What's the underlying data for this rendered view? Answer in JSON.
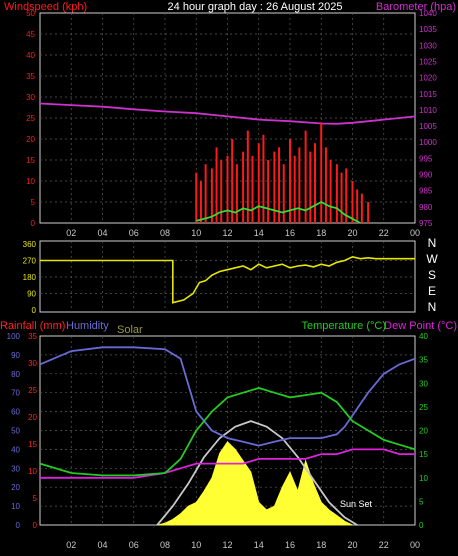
{
  "colors": {
    "background": "#000000",
    "frame": "#d0d0d0",
    "grid": "#5a5a5a",
    "windspeed": "#ff1a1a",
    "barometer": "#cc33cc",
    "gust_avg": "#33dd33",
    "direction": "#e6e600",
    "rainfall": "#ff2222",
    "humidity": "#6a6ad6",
    "solar": "#ffff33",
    "solar_theory": "#c8c8c8",
    "temperature": "#22cc22",
    "dewpoint": "#dd22dd",
    "xaxis": "#c8c8c8"
  },
  "header": {
    "title": "24 hour graph day : 26 August 2025"
  },
  "chart_data": [
    {
      "type": "line",
      "name": "wind-barometer",
      "labels": {
        "left": "Windspeed (kph)",
        "right": "Barometer (hpa)"
      },
      "x_ticks": [
        "02",
        "04",
        "06",
        "08",
        "10",
        "12",
        "14",
        "16",
        "18",
        "20",
        "22",
        "00"
      ],
      "y_left": {
        "range": [
          0,
          50
        ],
        "ticks": [
          "0",
          "5",
          "10",
          "15",
          "20",
          "25",
          "30",
          "35",
          "40",
          "45",
          "50"
        ]
      },
      "y_right": {
        "range": [
          975,
          1040
        ],
        "ticks": [
          "975",
          "980",
          "985",
          "990",
          "995",
          "1000",
          "1005",
          "1010",
          "1015",
          "1020",
          "1025",
          "1030",
          "1035",
          "1040"
        ]
      },
      "series": [
        {
          "key": "barometer",
          "axis": "right",
          "x": [
            0,
            2,
            4,
            6,
            8,
            10,
            12,
            14,
            16,
            18,
            19,
            20,
            22,
            24
          ],
          "y": [
            1012,
            1011.5,
            1011,
            1010.2,
            1009.5,
            1009,
            1008,
            1007,
            1006.5,
            1005.8,
            1005.7,
            1006,
            1007,
            1008
          ]
        },
        {
          "key": "windspeed",
          "axis": "left",
          "style": "spikes",
          "x": [
            10,
            10.3,
            10.6,
            11,
            11.3,
            11.6,
            12,
            12.3,
            12.6,
            13,
            13.3,
            13.6,
            14,
            14.3,
            14.6,
            15,
            15.3,
            15.6,
            16,
            16.3,
            16.6,
            17,
            17.3,
            17.6,
            18,
            18.3,
            18.6,
            19,
            19.3,
            19.6,
            20,
            20.3,
            20.6,
            21
          ],
          "y": [
            12,
            10,
            14,
            13,
            18,
            15,
            16,
            20,
            14,
            17,
            22,
            16,
            19,
            21,
            15,
            17,
            18,
            14,
            20,
            16,
            18,
            22,
            17,
            19,
            24,
            18,
            15,
            14,
            12,
            13,
            10,
            8,
            7,
            5
          ]
        },
        {
          "key": "gust_avg",
          "axis": "left",
          "x": [
            10,
            10.5,
            11,
            11.5,
            12,
            12.5,
            13,
            13.5,
            14,
            14.5,
            15,
            15.5,
            16,
            16.5,
            17,
            17.5,
            18,
            18.5,
            19,
            19.5,
            20,
            20.5
          ],
          "y": [
            0.5,
            1,
            1.5,
            2.5,
            3,
            2.5,
            3.5,
            3,
            4,
            3.5,
            3,
            2.5,
            3,
            3.5,
            3,
            4,
            5,
            4,
            3.5,
            2,
            1,
            0
          ]
        }
      ]
    },
    {
      "type": "line",
      "name": "wind-direction",
      "y_ticks": [
        "0",
        "90",
        "180",
        "270",
        "360"
      ],
      "y_range": [
        0,
        360
      ],
      "compass": [
        "N",
        "W",
        "S",
        "E",
        "N"
      ],
      "series": [
        {
          "key": "direction",
          "x": [
            0,
            8.5,
            8.5,
            9.2,
            9.8,
            10.2,
            10.6,
            11,
            11.5,
            12,
            12.5,
            13,
            13.5,
            14,
            14.5,
            15,
            15.5,
            16,
            16.5,
            17,
            17.5,
            18,
            18.5,
            19,
            19.5,
            20,
            20.5,
            21,
            21.5,
            22,
            23,
            24
          ],
          "y": [
            270,
            270,
            40,
            55,
            90,
            150,
            160,
            190,
            210,
            220,
            230,
            240,
            220,
            250,
            230,
            240,
            250,
            230,
            240,
            245,
            235,
            250,
            240,
            260,
            270,
            290,
            280,
            285,
            280,
            280,
            280,
            280
          ]
        }
      ]
    },
    {
      "type": "line",
      "name": "rain-humidity-solar-temp",
      "labels": {
        "rainfall": "Rainfall (mm)",
        "humidity": "Humidity",
        "solar": "Solar",
        "temperature": "Temperature (°C)",
        "dewpoint": "Dew Point (°C)"
      },
      "annotation": "Sun Set",
      "x_ticks": [
        "02",
        "04",
        "06",
        "08",
        "10",
        "12",
        "14",
        "16",
        "18",
        "20",
        "22",
        "00"
      ],
      "y_humidity": {
        "range": [
          0,
          100
        ],
        "ticks": [
          "0",
          "10",
          "20",
          "30",
          "40",
          "50",
          "60",
          "70",
          "80",
          "90",
          "100"
        ]
      },
      "y_rain": {
        "range": [
          0,
          35
        ],
        "ticks": [
          "0",
          "5",
          "10",
          "15",
          "20",
          "25",
          "30",
          "35"
        ]
      },
      "y_temp": {
        "range": [
          0,
          40
        ],
        "ticks": [
          "0",
          "5",
          "10",
          "15",
          "20",
          "25",
          "30",
          "35",
          "40"
        ]
      },
      "series": [
        {
          "key": "humidity",
          "axis": "humidity",
          "x": [
            0,
            2,
            4,
            6,
            8,
            9,
            10,
            11,
            12,
            13,
            14,
            15,
            16,
            17,
            18,
            19,
            19.5,
            20,
            21,
            22,
            23,
            24
          ],
          "y": [
            85,
            92,
            94,
            94,
            93,
            88,
            60,
            50,
            46,
            44,
            42,
            44,
            46,
            46,
            46,
            48,
            52,
            58,
            70,
            80,
            85,
            88
          ]
        },
        {
          "key": "temperature",
          "axis": "temp",
          "x": [
            0,
            2,
            4,
            6,
            8,
            9,
            10,
            11,
            12,
            13,
            14,
            15,
            16,
            17,
            18,
            19,
            20,
            21,
            22,
            23,
            24
          ],
          "y": [
            13,
            11,
            10.5,
            10.5,
            11,
            14,
            20,
            24,
            27,
            28,
            29,
            28,
            27,
            27.5,
            28,
            26,
            22,
            20,
            18,
            17,
            16
          ]
        },
        {
          "key": "dewpoint",
          "axis": "temp",
          "x": [
            0,
            2,
            4,
            6,
            8,
            9,
            10,
            11,
            12,
            13,
            14,
            15,
            16,
            17,
            18,
            19,
            20,
            21,
            22,
            23,
            24
          ],
          "y": [
            10,
            10,
            10,
            10,
            11,
            12,
            13,
            13,
            13,
            13,
            14,
            14,
            14,
            14,
            15,
            15,
            16,
            16,
            16,
            15,
            15
          ]
        },
        {
          "key": "solar_theory",
          "axis": "humidity",
          "x": [
            7.5,
            8.5,
            9.5,
            10.5,
            11.5,
            12.5,
            13.5,
            14.5,
            15.5,
            16.5,
            17.5,
            18.5,
            19.5,
            20.3
          ],
          "y": [
            0,
            10,
            22,
            36,
            46,
            52,
            55,
            52,
            46,
            36,
            24,
            12,
            4,
            0
          ]
        },
        {
          "key": "solar",
          "axis": "humidity",
          "style": "area",
          "x": [
            7.5,
            8,
            8.5,
            9,
            9.5,
            10,
            10.5,
            11,
            11.5,
            12,
            12.5,
            13,
            13.5,
            14,
            14.5,
            15,
            15.5,
            16,
            16.5,
            17,
            17.5,
            18,
            18.5,
            19,
            19.5,
            20
          ],
          "y": [
            0,
            1,
            3,
            6,
            10,
            12,
            18,
            25,
            38,
            44,
            40,
            34,
            28,
            12,
            8,
            10,
            20,
            28,
            18,
            34,
            22,
            12,
            8,
            5,
            2,
            0
          ]
        }
      ]
    }
  ]
}
